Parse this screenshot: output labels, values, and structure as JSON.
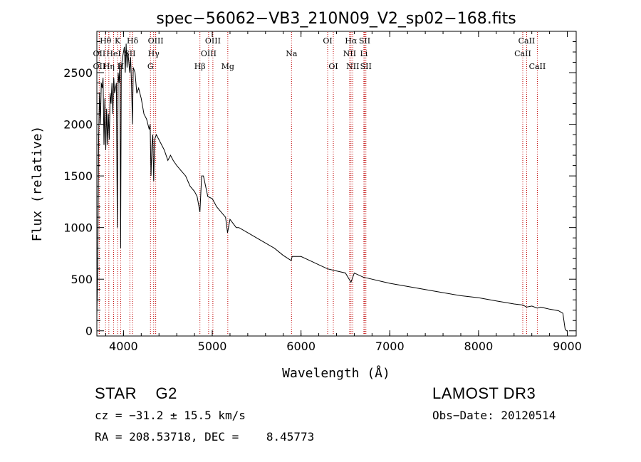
{
  "chart_data": {
    "type": "line",
    "title": "spec−56062−VB3_210N09_V2_sp02−168.fits",
    "xlabel": "Wavelength (Å)",
    "ylabel": "Flux (relative)",
    "xlim": [
      3700,
      9100
    ],
    "ylim": [
      -50,
      2900
    ],
    "xticks": [
      4000,
      5000,
      6000,
      7000,
      8000,
      9000
    ],
    "yticks": [
      0,
      500,
      1000,
      1500,
      2000,
      2500
    ],
    "series": [
      {
        "name": "spectrum",
        "x": [
          3700,
          3710,
          3720,
          3730,
          3740,
          3750,
          3760,
          3770,
          3780,
          3790,
          3800,
          3810,
          3820,
          3830,
          3840,
          3850,
          3860,
          3870,
          3880,
          3890,
          3900,
          3910,
          3920,
          3930,
          3940,
          3950,
          3960,
          3968,
          3975,
          3990,
          4000,
          4010,
          4020,
          4030,
          4040,
          4050,
          4060,
          4070,
          4080,
          4090,
          4101,
          4110,
          4130,
          4150,
          4170,
          4200,
          4230,
          4260,
          4290,
          4300,
          4310,
          4320,
          4330,
          4340,
          4350,
          4370,
          4400,
          4430,
          4460,
          4500,
          4530,
          4560,
          4600,
          4650,
          4700,
          4750,
          4800,
          4830,
          4861,
          4880,
          4900,
          4950,
          5000,
          5050,
          5100,
          5150,
          5172,
          5200,
          5270,
          5300,
          5400,
          5500,
          5600,
          5700,
          5800,
          5890,
          5900,
          6000,
          6100,
          6200,
          6300,
          6400,
          6500,
          6563,
          6600,
          6700,
          6800,
          6900,
          7000,
          7200,
          7400,
          7600,
          7800,
          8000,
          8200,
          8400,
          8500,
          8542,
          8600,
          8662,
          8700,
          8800,
          8900,
          8950,
          8975,
          8990,
          9000
        ],
        "values": [
          150,
          600,
          1850,
          2300,
          2000,
          2400,
          2350,
          2450,
          1800,
          2250,
          1750,
          2150,
          1800,
          2100,
          1850,
          2300,
          2200,
          2400,
          2100,
          2450,
          2300,
          2350,
          2400,
          1000,
          2500,
          2400,
          2600,
          800,
          2550,
          2650,
          2700,
          2750,
          2500,
          2780,
          2550,
          2700,
          2600,
          2500,
          2650,
          2400,
          2000,
          2550,
          2500,
          2300,
          2350,
          2250,
          2100,
          2050,
          1950,
          2000,
          1500,
          1800,
          1900,
          1450,
          1850,
          1900,
          1850,
          1800,
          1750,
          1650,
          1700,
          1650,
          1600,
          1550,
          1500,
          1400,
          1350,
          1300,
          1150,
          1500,
          1500,
          1300,
          1280,
          1200,
          1150,
          1100,
          950,
          1080,
          1000,
          1000,
          950,
          900,
          850,
          800,
          730,
          680,
          720,
          720,
          680,
          640,
          600,
          580,
          560,
          470,
          560,
          520,
          500,
          480,
          460,
          430,
          400,
          370,
          340,
          320,
          290,
          260,
          250,
          230,
          240,
          220,
          230,
          210,
          195,
          170,
          20,
          0,
          0
        ],
        "color": "#000000"
      }
    ],
    "lines": [
      {
        "label": "Hθ",
        "x": 3798,
        "row": 1
      },
      {
        "label": "OII",
        "x": 3727,
        "row": 2
      },
      {
        "label": "OII",
        "x": 3727,
        "row": 3
      },
      {
        "label": "Hη",
        "x": 3835,
        "row": 3
      },
      {
        "label": "HeI",
        "x": 3889,
        "row": 2
      },
      {
        "label": "K",
        "x": 3934,
        "row": 1
      },
      {
        "label": "H",
        "x": 3968,
        "row": 3
      },
      {
        "label": "Hδ",
        "x": 4102,
        "row": 1
      },
      {
        "label": "SII",
        "x": 4072,
        "row": 2
      },
      {
        "label": "OIII",
        "x": 4363,
        "row": 1
      },
      {
        "label": "Hγ",
        "x": 4340,
        "row": 2
      },
      {
        "label": "G",
        "x": 4304,
        "row": 3
      },
      {
        "label": "Hβ",
        "x": 4861,
        "row": 3
      },
      {
        "label": "OIII",
        "x": 4959,
        "row": 2
      },
      {
        "label": "OIII",
        "x": 5007,
        "row": 1
      },
      {
        "label": "Mg",
        "x": 5175,
        "row": 3
      },
      {
        "label": "Na",
        "x": 5893,
        "row": 2
      },
      {
        "label": "OI",
        "x": 6300,
        "row": 1
      },
      {
        "label": "OI",
        "x": 6364,
        "row": 3
      },
      {
        "label": "NII",
        "x": 6548,
        "row": 2
      },
      {
        "label": "Hα",
        "x": 6563,
        "row": 1
      },
      {
        "label": "NII",
        "x": 6583,
        "row": 3
      },
      {
        "label": "Li",
        "x": 6708,
        "row": 2
      },
      {
        "label": "SII",
        "x": 6717,
        "row": 1
      },
      {
        "label": "SII",
        "x": 6731,
        "row": 3
      },
      {
        "label": "CaII",
        "x": 8498,
        "row": 2
      },
      {
        "label": "CaII",
        "x": 8542,
        "row": 1
      },
      {
        "label": "CaII",
        "x": 8662,
        "row": 3
      }
    ]
  },
  "info": {
    "class_line": "STAR    G2",
    "survey": "LAMOST DR3",
    "redshift": "cz = −31.2 ± 15.5 km/s",
    "obs_date": "Obs−Date: 20120514",
    "coords": "RA = 208.53718, DEC =    8.45773"
  }
}
